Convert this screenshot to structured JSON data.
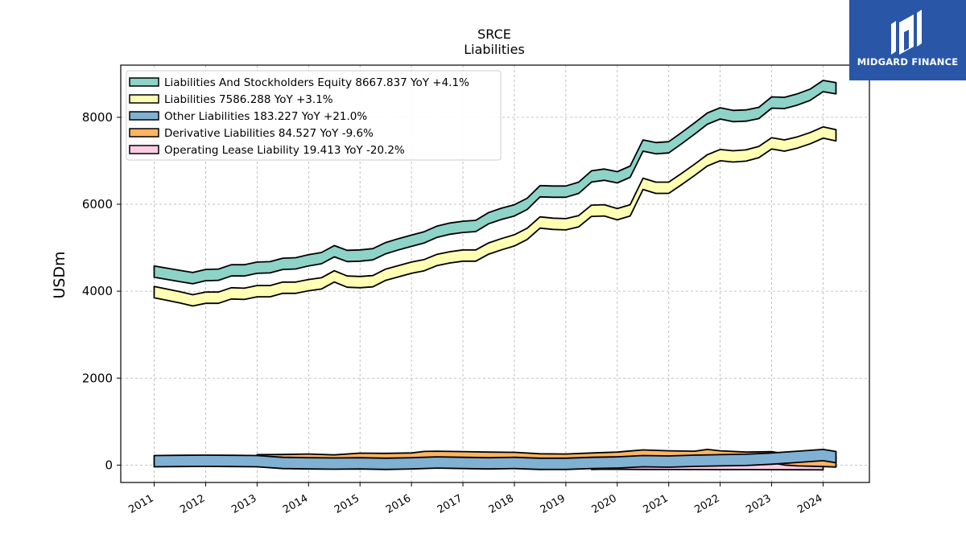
{
  "logo": {
    "text": "MIDGARD FINANCE",
    "bg": "#2a56a8"
  },
  "chart_data": {
    "type": "area",
    "title": "SRCE",
    "subtitle": "Liabilities",
    "ylabel": "USDm",
    "xlabel": "",
    "xlim": [
      2010.35,
      2024.9
    ],
    "ylim": [
      -400,
      9200
    ],
    "yticks": [
      0,
      2000,
      4000,
      6000,
      8000
    ],
    "xticks": [
      2011,
      2012,
      2013,
      2014,
      2015,
      2016,
      2017,
      2018,
      2019,
      2020,
      2021,
      2022,
      2023,
      2024
    ],
    "grid": true,
    "legend_position": "upper-left",
    "series": [
      {
        "name": "Liabilities And Stockholders Equity",
        "legend": "Liabilities And Stockholders Equity  8667.837 YoY +4.1%",
        "color": "#8dd3c7",
        "x": [
          2011.0,
          2011.25,
          2011.5,
          2011.75,
          2012.0,
          2012.25,
          2012.5,
          2012.75,
          2013.0,
          2013.25,
          2013.5,
          2013.75,
          2014.0,
          2014.25,
          2014.5,
          2014.75,
          2015.0,
          2015.25,
          2015.5,
          2015.75,
          2016.0,
          2016.25,
          2016.5,
          2016.75,
          2017.0,
          2017.25,
          2017.5,
          2017.75,
          2018.0,
          2018.25,
          2018.5,
          2018.75,
          2019.0,
          2019.25,
          2019.5,
          2019.75,
          2020.0,
          2020.25,
          2020.5,
          2020.75,
          2021.0,
          2021.25,
          2021.5,
          2021.75,
          2022.0,
          2022.25,
          2022.5,
          2022.75,
          2023.0,
          2023.25,
          2023.5,
          2023.75,
          2024.0,
          2024.25
        ],
        "values": [
          4450,
          4400,
          4350,
          4300,
          4370,
          4380,
          4480,
          4480,
          4540,
          4550,
          4630,
          4640,
          4710,
          4760,
          4920,
          4810,
          4820,
          4850,
          4990,
          5080,
          5160,
          5240,
          5370,
          5440,
          5480,
          5500,
          5680,
          5780,
          5860,
          6010,
          6300,
          6290,
          6290,
          6380,
          6640,
          6680,
          6620,
          6750,
          7350,
          7290,
          7310,
          7520,
          7740,
          7970,
          8090,
          8030,
          8040,
          8100,
          8340,
          8330,
          8410,
          8520,
          8720,
          8668
        ]
      },
      {
        "name": "Liabilities",
        "legend": "Liabilities  7586.288 YoY +3.1%",
        "color": "#ffffb3",
        "x": [
          2011.0,
          2011.25,
          2011.5,
          2011.75,
          2012.0,
          2012.25,
          2012.5,
          2012.75,
          2013.0,
          2013.25,
          2013.5,
          2013.75,
          2014.0,
          2014.25,
          2014.5,
          2014.75,
          2015.0,
          2015.25,
          2015.5,
          2015.75,
          2016.0,
          2016.25,
          2016.5,
          2016.75,
          2017.0,
          2017.25,
          2017.5,
          2017.75,
          2018.0,
          2018.25,
          2018.5,
          2018.75,
          2019.0,
          2019.25,
          2019.5,
          2019.75,
          2020.0,
          2020.25,
          2020.5,
          2020.75,
          2021.0,
          2021.25,
          2021.5,
          2021.75,
          2022.0,
          2022.25,
          2022.5,
          2022.75,
          2023.0,
          2023.25,
          2023.5,
          2023.75,
          2024.0,
          2024.25
        ],
        "values": [
          3980,
          3920,
          3860,
          3790,
          3850,
          3850,
          3950,
          3940,
          4000,
          4000,
          4080,
          4080,
          4140,
          4180,
          4340,
          4220,
          4210,
          4230,
          4380,
          4460,
          4540,
          4600,
          4720,
          4780,
          4820,
          4820,
          4980,
          5080,
          5170,
          5320,
          5580,
          5550,
          5540,
          5610,
          5850,
          5860,
          5770,
          5860,
          6470,
          6380,
          6380,
          6580,
          6790,
          7010,
          7130,
          7100,
          7120,
          7200,
          7400,
          7350,
          7420,
          7520,
          7650,
          7586
        ]
      },
      {
        "name": "Other Liabilities",
        "legend": "Other Liabilities  183.227 YoY +21.0%",
        "color": "#80b1d3",
        "x": [
          2011.0,
          2011.5,
          2012.0,
          2012.5,
          2013.0,
          2013.5,
          2014.0,
          2014.5,
          2015.0,
          2015.5,
          2016.0,
          2016.5,
          2017.0,
          2017.5,
          2018.0,
          2018.5,
          2019.0,
          2019.5,
          2020.0,
          2020.5,
          2021.0,
          2021.5,
          2022.0,
          2022.5,
          2023.0,
          2023.5,
          2024.0,
          2024.25
        ],
        "values": [
          90,
          95,
          100,
          95,
          90,
          50,
          40,
          35,
          40,
          30,
          40,
          60,
          50,
          40,
          50,
          30,
          30,
          50,
          60,
          90,
          80,
          100,
          110,
          120,
          150,
          190,
          230,
          183
        ]
      },
      {
        "name": "Derivative Liabilities",
        "legend": "Derivative Liabilities  84.527 YoY -9.6%",
        "color": "#fdb462",
        "x": [
          2013.0,
          2013.5,
          2014.0,
          2014.5,
          2015.0,
          2015.5,
          2016.0,
          2016.25,
          2016.5,
          2017.0,
          2017.5,
          2018.0,
          2018.5,
          2019.0,
          2019.5,
          2020.0,
          2020.25,
          2020.5,
          2021.0,
          2021.5,
          2021.75,
          2022.0,
          2022.5,
          2023.0,
          2023.25,
          2023.5,
          2024.0,
          2024.25
        ],
        "values": [
          110,
          115,
          125,
          105,
          145,
          140,
          150,
          185,
          190,
          180,
          170,
          165,
          130,
          125,
          150,
          170,
          195,
          220,
          200,
          190,
          230,
          200,
          170,
          180,
          130,
          110,
          95,
          85
        ]
      },
      {
        "name": "Operating Lease Liability",
        "legend": "Operating Lease Liability  19.413 YoY -20.2%",
        "color": "#fccde5",
        "x": [
          2019.5,
          2019.75,
          2020.0,
          2020.5,
          2021.0,
          2021.5,
          2022.0,
          2022.5,
          2023.0,
          2023.5,
          2024.0
        ],
        "values": [
          30,
          35,
          32,
          30,
          28,
          27,
          26,
          25,
          24,
          22,
          19
        ]
      }
    ]
  }
}
